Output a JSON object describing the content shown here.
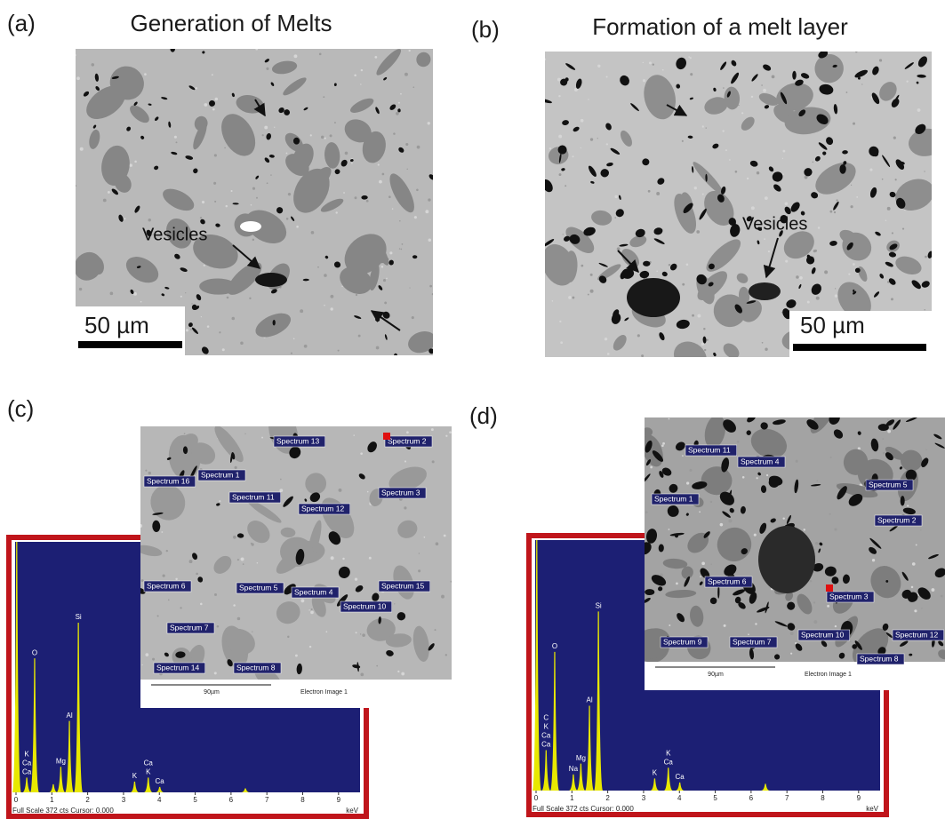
{
  "panels": {
    "a": {
      "label": "(a)",
      "title": "Generation of Melts",
      "annotation": "Vesicles",
      "scale": "50 µm"
    },
    "b": {
      "label": "(b)",
      "title": "Formation of a melt layer",
      "annotation": "Vesicles",
      "scale": "50 µm"
    },
    "c": {
      "label": "(c)",
      "image": {
        "spectra": [
          "Spectrum 13",
          "Spectrum 2",
          "Spectrum 1",
          "Spectrum 16",
          "Spectrum 11",
          "Spectrum 3",
          "Spectrum 12",
          "Spectrum 6",
          "Spectrum 5",
          "Spectrum 4",
          "Spectrum 15",
          "Spectrum 10",
          "Spectrum 7",
          "Spectrum 14",
          "Spectrum 8"
        ],
        "scale": "90µm",
        "caption": "Electron Image 1"
      },
      "spectrum": {
        "type": "spectrum",
        "footer": "Full Scale 372 cts Cursor: 0.000",
        "unit": "keV",
        "xlim": [
          0,
          9.6
        ],
        "ylim": [
          0,
          372
        ],
        "xticks": [
          0,
          1,
          2,
          3,
          4,
          5,
          6,
          7,
          8,
          9
        ],
        "color": "#e8e800",
        "peaks": [
          {
            "kev": 0.02,
            "counts": 372,
            "labels": []
          },
          {
            "kev": 0.3,
            "counts": 22,
            "labels": [
              "K",
              "Ca",
              "Ca"
            ]
          },
          {
            "kev": 0.52,
            "counts": 199,
            "labels": [
              "O"
            ]
          },
          {
            "kev": 1.04,
            "counts": 12,
            "labels": []
          },
          {
            "kev": 1.25,
            "counts": 38,
            "labels": [
              "Mg"
            ]
          },
          {
            "kev": 1.49,
            "counts": 106,
            "labels": [
              "Al"
            ]
          },
          {
            "kev": 1.74,
            "counts": 252,
            "labels": [
              "Si"
            ]
          },
          {
            "kev": 3.31,
            "counts": 16,
            "labels": [
              "K"
            ]
          },
          {
            "kev": 3.69,
            "counts": 22,
            "labels": [
              "Ca",
              "K"
            ]
          },
          {
            "kev": 4.01,
            "counts": 8,
            "labels": [
              "Ca"
            ]
          },
          {
            "kev": 6.4,
            "counts": 6,
            "labels": []
          }
        ]
      }
    },
    "d": {
      "label": "(d)",
      "image": {
        "spectra": [
          "Spectrum 11",
          "Spectrum 4",
          "Spectrum 1",
          "Spectrum 5",
          "Spectrum 2",
          "Spectrum 6",
          "Spectrum 3",
          "Spectrum 9",
          "Spectrum 7",
          "Spectrum 10",
          "Spectrum 12",
          "Spectrum 8"
        ],
        "scale": "90µm",
        "caption": "Electron Image 1"
      },
      "spectrum": {
        "type": "spectrum",
        "footer": "Full Scale 372 cts Cursor: 0.000",
        "unit": "keV",
        "xlim": [
          0,
          9.6
        ],
        "ylim": [
          0,
          372
        ],
        "xticks": [
          0,
          1,
          2,
          3,
          4,
          5,
          6,
          7,
          8,
          9
        ],
        "color": "#e8e800",
        "peaks": [
          {
            "kev": 0.02,
            "counts": 372,
            "labels": []
          },
          {
            "kev": 0.28,
            "counts": 60,
            "labels": [
              "C",
              "K",
              "Ca",
              "Ca"
            ]
          },
          {
            "kev": 0.52,
            "counts": 206,
            "labels": [
              "O"
            ]
          },
          {
            "kev": 1.04,
            "counts": 24,
            "labels": [
              "Na"
            ]
          },
          {
            "kev": 1.25,
            "counts": 40,
            "labels": [
              "Mg"
            ]
          },
          {
            "kev": 1.49,
            "counts": 126,
            "labels": [
              "Al"
            ]
          },
          {
            "kev": 1.74,
            "counts": 266,
            "labels": [
              "Si"
            ]
          },
          {
            "kev": 3.31,
            "counts": 18,
            "labels": [
              "K"
            ]
          },
          {
            "kev": 3.69,
            "counts": 34,
            "labels": [
              "K",
              "Ca"
            ]
          },
          {
            "kev": 4.01,
            "counts": 12,
            "labels": [
              "Ca"
            ]
          },
          {
            "kev": 6.4,
            "counts": 10,
            "labels": []
          }
        ]
      }
    }
  }
}
